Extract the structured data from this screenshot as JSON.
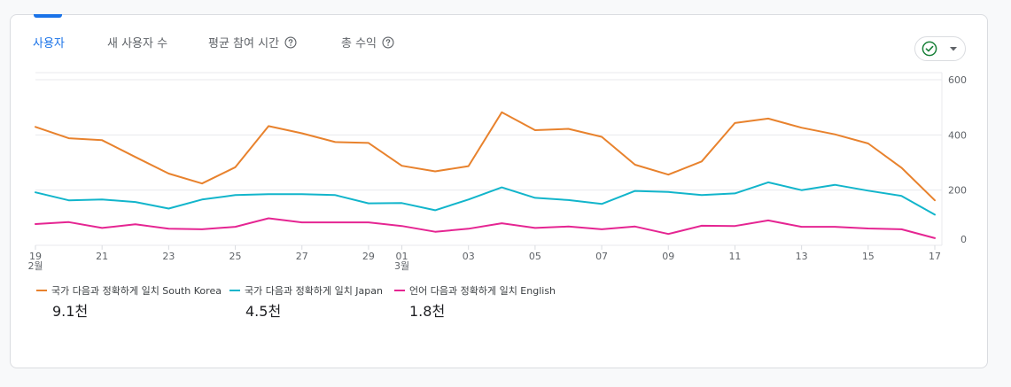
{
  "tabs": [
    {
      "label": "사용자",
      "active": true,
      "help": false
    },
    {
      "label": "새 사용자 수",
      "active": false,
      "help": false
    },
    {
      "label": "평균 참여 시간",
      "active": false,
      "help": true
    },
    {
      "label": "총 수익",
      "active": false,
      "help": true
    }
  ],
  "colors": {
    "accent": "#1a73e8",
    "check": "#188038"
  },
  "legend": [
    {
      "label": "국가 다음과 정확하게 일치 South Korea",
      "value": "9.1천",
      "color": "#e8822d"
    },
    {
      "label": "국가 다음과 정확하게 일치 Japan",
      "value": "4.5천",
      "color": "#12b5cb"
    },
    {
      "label": "언어 다음과 정확하게 일치 English",
      "value": "1.8천",
      "color": "#e52592"
    }
  ],
  "chart_data": {
    "type": "line",
    "title": "",
    "xlabel": "",
    "ylabel": "",
    "ylim": [
      0,
      600
    ],
    "yticks": [
      0,
      200,
      400,
      600
    ],
    "x": [
      "02-19",
      "02-20",
      "02-21",
      "02-22",
      "02-23",
      "02-24",
      "02-25",
      "02-26",
      "02-27",
      "02-28",
      "02-29",
      "03-01",
      "03-02",
      "03-03",
      "03-04",
      "03-05",
      "03-06",
      "03-07",
      "03-08",
      "03-09",
      "03-10",
      "03-11",
      "03-12",
      "03-13",
      "03-14",
      "03-15",
      "03-16",
      "03-17"
    ],
    "xtick_labels": [
      {
        "index": 0,
        "day": "19",
        "month": "2월"
      },
      {
        "index": 2,
        "day": "21",
        "month": ""
      },
      {
        "index": 4,
        "day": "23",
        "month": ""
      },
      {
        "index": 6,
        "day": "25",
        "month": ""
      },
      {
        "index": 8,
        "day": "27",
        "month": ""
      },
      {
        "index": 10,
        "day": "29",
        "month": ""
      },
      {
        "index": 11,
        "day": "01",
        "month": "3월"
      },
      {
        "index": 13,
        "day": "03",
        "month": ""
      },
      {
        "index": 15,
        "day": "05",
        "month": ""
      },
      {
        "index": 17,
        "day": "07",
        "month": ""
      },
      {
        "index": 19,
        "day": "09",
        "month": ""
      },
      {
        "index": 21,
        "day": "11",
        "month": ""
      },
      {
        "index": 23,
        "day": "13",
        "month": ""
      },
      {
        "index": 25,
        "day": "15",
        "month": ""
      },
      {
        "index": 27,
        "day": "17",
        "month": ""
      }
    ],
    "series": [
      {
        "name": "국가 다음과 정확하게 일치 South Korea",
        "color": "#e8822d",
        "values": [
          429,
          388,
          381,
          320,
          260,
          224,
          283,
          432,
          406,
          374,
          371,
          288,
          268,
          287,
          482,
          417,
          422,
          393,
          292,
          256,
          304,
          443,
          459,
          426,
          402,
          369,
          281,
          163
        ]
      },
      {
        "name": "국가 다음과 정확하게 일치 Japan",
        "color": "#12b5cb",
        "values": [
          192,
          163,
          166,
          157,
          133,
          166,
          182,
          185,
          185,
          182,
          152,
          153,
          127,
          166,
          210,
          172,
          164,
          150,
          197,
          193,
          182,
          188,
          228,
          200,
          219,
          198,
          179,
          111
        ]
      },
      {
        "name": "언어 다음과 정확하게 일치 English",
        "color": "#e52592",
        "values": [
          77,
          84,
          63,
          76,
          60,
          58,
          67,
          98,
          83,
          83,
          83,
          70,
          49,
          60,
          80,
          63,
          68,
          58,
          68,
          41,
          71,
          70,
          90,
          67,
          67,
          61,
          58,
          26
        ]
      }
    ]
  }
}
